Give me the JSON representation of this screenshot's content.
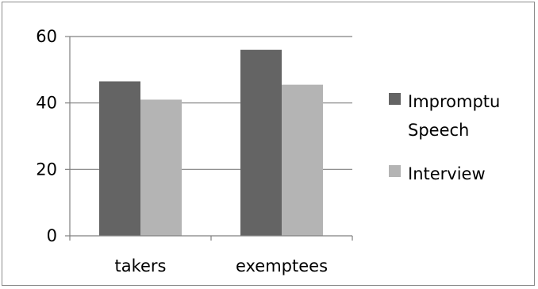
{
  "chart_data": {
    "type": "bar",
    "categories": [
      "takers",
      "exemptees"
    ],
    "series": [
      {
        "name": "Impromptu Speech",
        "values": [
          46.5,
          56
        ],
        "color": "#646464"
      },
      {
        "name": "Interview",
        "values": [
          41,
          45.5
        ],
        "color": "#b4b4b4"
      }
    ],
    "legend_lines": [
      [
        "Impromptu",
        "Speech"
      ],
      [
        "Interview"
      ]
    ],
    "ylim": [
      0,
      60
    ],
    "yticks": [
      "0",
      "20",
      "40",
      "60"
    ],
    "ytick_values": [
      0,
      20,
      40,
      60
    ],
    "grid": true,
    "legend_position": "right"
  }
}
